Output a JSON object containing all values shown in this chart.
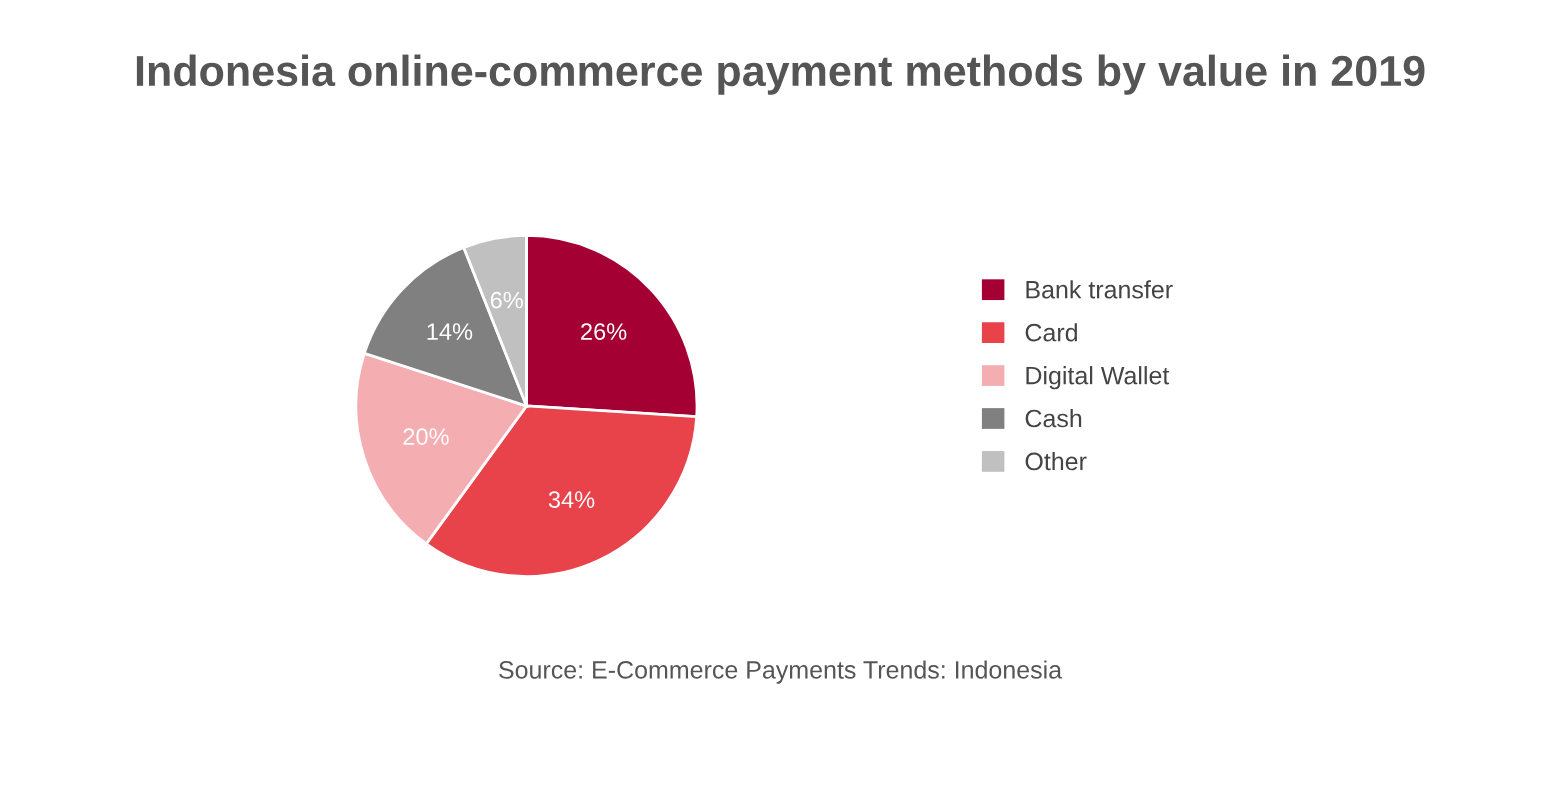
{
  "chart_data": {
    "type": "pie",
    "title": "Indonesia online-commerce payment methods by value in 2019",
    "categories": [
      "Bank transfer",
      "Card",
      "Digital Wallet",
      "Cash",
      "Other"
    ],
    "values": [
      26,
      34,
      20,
      14,
      6
    ],
    "colors": [
      "#a50034",
      "#e8424a",
      "#f4aeb2",
      "#808080",
      "#c0c0c0"
    ],
    "value_labels": [
      "26%",
      "34%",
      "20%",
      "14%",
      "6%"
    ],
    "legend": "right",
    "annotations": [
      "Source: E-Commerce Payments Trends: Indonesia"
    ]
  }
}
